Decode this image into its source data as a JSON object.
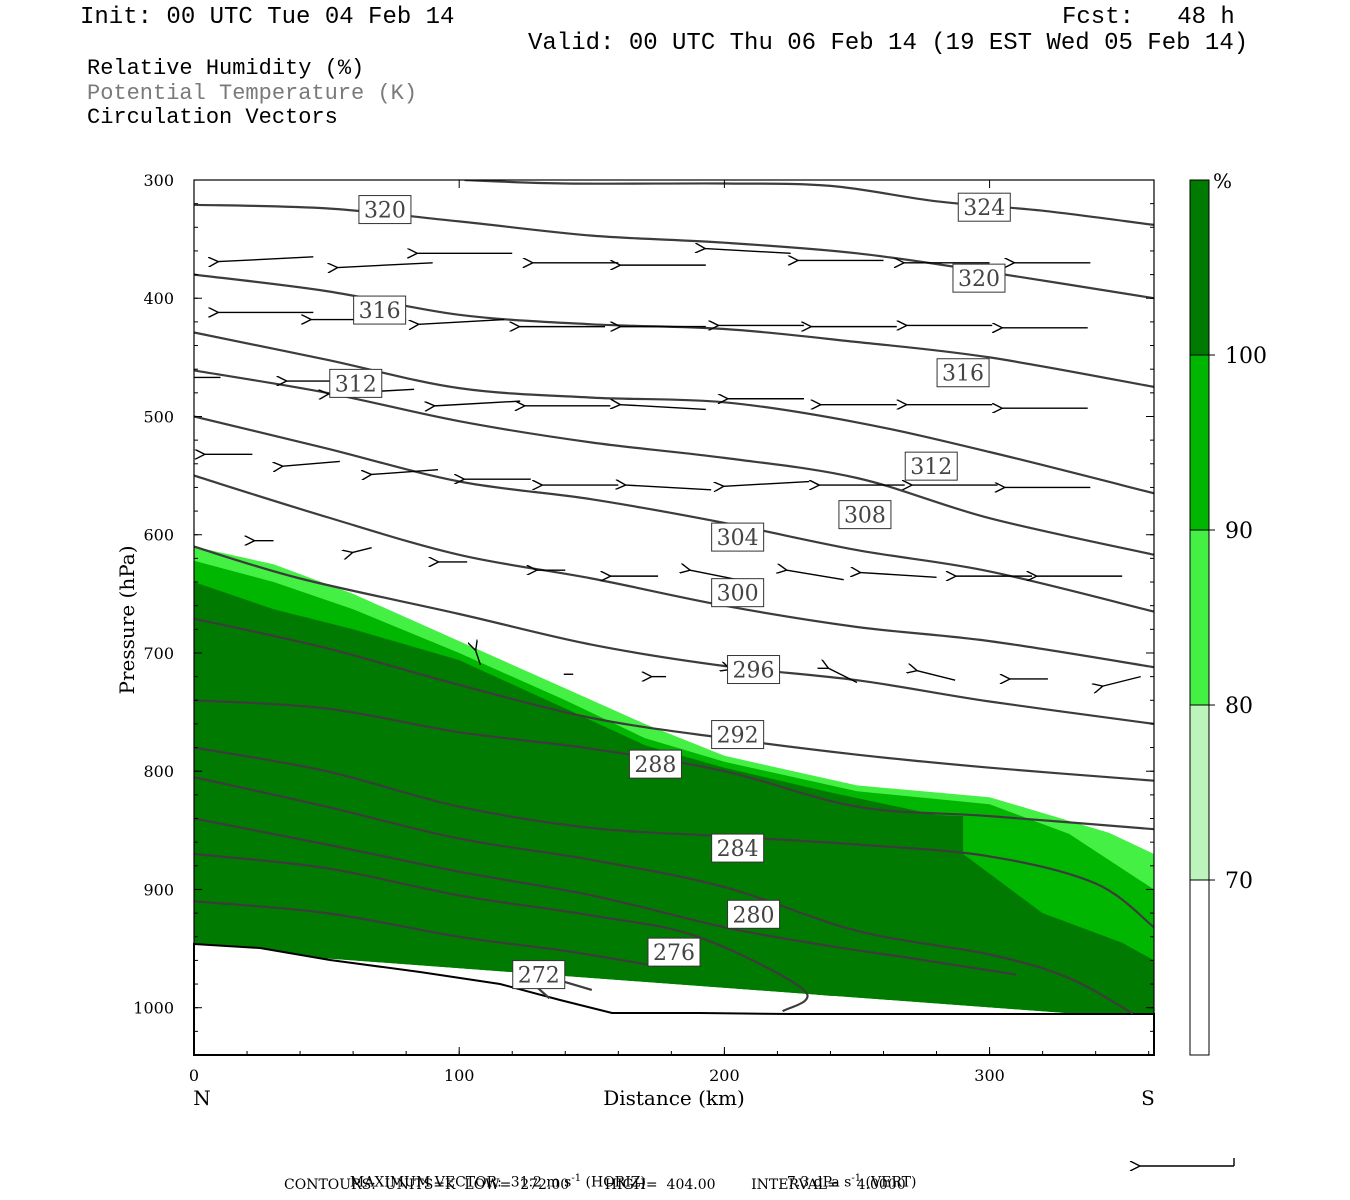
{
  "header": {
    "init": "Init: 00 UTC Tue 04 Feb 14",
    "fcst": "Fcst:   48 h",
    "valid": "Valid: 00 UTC Thu 06 Feb 14 (19 EST Wed 05 Feb 14)"
  },
  "fields": {
    "rh": "Relative Humidity (%)",
    "theta": "Potential Temperature (K)",
    "vectors": "Circulation Vectors"
  },
  "footer": {
    "line1_a": "MAXIMUM VECTOR:  31.2 m s",
    "line1_a_sup": "-1",
    "line1_b": " (HORIZ)",
    "line1_c": "7.3 dPa s",
    "line1_c_sup": "-1",
    "line1_d": " (VERT)",
    "line2": "CONTOURS:  UNITS=K  LOW=  272.00        HIGH=  404.00        INTERVAL=    4.0000"
  },
  "chart_data": {
    "type": "cross-section",
    "xlabel": "Distance (km)",
    "ylabel": "Pressure (hPa)",
    "x_end_labels": [
      "N",
      "S"
    ],
    "xlim": [
      0,
      362
    ],
    "ylim": [
      1040,
      300
    ],
    "x_ticks": [
      0,
      100,
      200,
      300
    ],
    "y_ticks": [
      300,
      400,
      500,
      600,
      700,
      800,
      900,
      1000
    ],
    "colorbar": {
      "unit": "%",
      "levels": [
        70,
        80,
        90,
        100
      ],
      "colors": [
        "#ffffff",
        "#bcf4bc",
        "#44f044",
        "#00b600",
        "#007a00"
      ]
    },
    "theta_contours": [
      {
        "value": 324,
        "label": "324",
        "label_at": [
          298,
          323
        ],
        "points": [
          [
            102,
            300
          ],
          [
            140,
            303
          ],
          [
            200,
            303
          ],
          [
            240,
            305
          ],
          [
            280,
            318
          ],
          [
            320,
            326
          ],
          [
            362,
            338
          ]
        ]
      },
      {
        "value": 320,
        "label": "320",
        "label_at": [
          72,
          325
        ],
        "points": [
          [
            0,
            321
          ],
          [
            50,
            324
          ],
          [
            100,
            335
          ],
          [
            150,
            347
          ],
          [
            200,
            353
          ],
          [
            250,
            362
          ],
          [
            300,
            378
          ],
          [
            362,
            400
          ]
        ]
      },
      {
        "value": 320,
        "label": "320",
        "label_at": [
          296,
          383
        ],
        "points": [
          [
            0,
            380
          ],
          [
            50,
            394
          ],
          [
            100,
            414
          ],
          [
            150,
            422
          ],
          [
            200,
            426
          ],
          [
            250,
            437
          ],
          [
            300,
            450
          ],
          [
            362,
            475
          ]
        ]
      },
      {
        "value": 316,
        "label": "316",
        "label_at": [
          70,
          410
        ],
        "points": [
          [
            0,
            429
          ],
          [
            50,
            452
          ],
          [
            100,
            476
          ],
          [
            150,
            484
          ],
          [
            200,
            488
          ],
          [
            250,
            505
          ],
          [
            300,
            530
          ],
          [
            362,
            565
          ]
        ]
      },
      {
        "value": 316,
        "label": "316",
        "label_at": [
          290,
          463
        ],
        "points": [
          [
            0,
            461
          ],
          [
            50,
            480
          ],
          [
            100,
            504
          ],
          [
            150,
            522
          ],
          [
            200,
            535
          ],
          [
            250,
            552
          ],
          [
            300,
            586
          ],
          [
            362,
            617
          ]
        ]
      },
      {
        "value": 312,
        "label": "312",
        "label_at": [
          61,
          472
        ],
        "points": [
          [
            0,
            500
          ],
          [
            50,
            527
          ],
          [
            100,
            555
          ],
          [
            150,
            570
          ],
          [
            200,
            590
          ],
          [
            250,
            613
          ],
          [
            300,
            631
          ],
          [
            362,
            665
          ]
        ]
      },
      {
        "value": 312,
        "label": "312",
        "label_at": [
          278,
          542
        ],
        "points": [
          [
            0,
            550
          ],
          [
            50,
            585
          ],
          [
            100,
            617
          ],
          [
            150,
            637
          ],
          [
            200,
            660
          ],
          [
            250,
            678
          ],
          [
            300,
            690
          ],
          [
            362,
            712
          ]
        ]
      },
      {
        "value": 308,
        "label": "308",
        "label_at": [
          253,
          583
        ],
        "points": [
          [
            0,
            610
          ],
          [
            40,
            637
          ],
          [
            100,
            667
          ],
          [
            150,
            693
          ],
          [
            200,
            711
          ],
          [
            250,
            723
          ],
          [
            300,
            741
          ],
          [
            362,
            760
          ]
        ]
      },
      {
        "value": 304,
        "label": "304",
        "label_at": [
          205,
          602
        ],
        "points": [
          [
            0,
            671
          ],
          [
            50,
            696
          ],
          [
            100,
            727
          ],
          [
            150,
            755
          ],
          [
            200,
            772
          ],
          [
            250,
            786
          ],
          [
            300,
            797
          ],
          [
            362,
            808
          ]
        ]
      },
      {
        "value": 300,
        "label": "300",
        "label_at": [
          205,
          649
        ],
        "points": [
          [
            0,
            740
          ],
          [
            50,
            747
          ],
          [
            100,
            767
          ],
          [
            150,
            781
          ],
          [
            200,
            800
          ],
          [
            250,
            830
          ],
          [
            300,
            838
          ],
          [
            362,
            849
          ]
        ]
      },
      {
        "value": 296,
        "label": "296",
        "label_at": [
          211,
          714
        ],
        "points": [
          [
            0,
            780
          ],
          [
            50,
            800
          ],
          [
            100,
            830
          ],
          [
            150,
            848
          ],
          [
            200,
            855
          ],
          [
            250,
            862
          ],
          [
            300,
            872
          ],
          [
            340,
            895
          ],
          [
            362,
            932
          ]
        ]
      },
      {
        "value": 292,
        "label": "292",
        "label_at": [
          205,
          769
        ],
        "points": [
          [
            0,
            805
          ],
          [
            50,
            830
          ],
          [
            100,
            857
          ],
          [
            150,
            875
          ],
          [
            200,
            898
          ],
          [
            250,
            935
          ],
          [
            300,
            955
          ],
          [
            330,
            975
          ],
          [
            354,
            1005
          ]
        ]
      },
      {
        "value": 288,
        "label": "288",
        "label_at": [
          174,
          794
        ],
        "points": [
          [
            0,
            840
          ],
          [
            50,
            862
          ],
          [
            100,
            885
          ],
          [
            150,
            905
          ],
          [
            200,
            932
          ],
          [
            240,
            948
          ],
          [
            270,
            958
          ],
          [
            310,
            972
          ]
        ]
      },
      {
        "value": 284,
        "label": "284",
        "label_at": [
          205,
          865
        ],
        "points": [
          [
            0,
            870
          ],
          [
            50,
            882
          ],
          [
            100,
            905
          ],
          [
            150,
            922
          ],
          [
            190,
            940
          ],
          [
            230,
            985
          ],
          [
            222,
            1003
          ]
        ]
      },
      {
        "value": 280,
        "label": "280",
        "label_at": [
          211,
          921
        ],
        "points": [
          [
            0,
            910
          ],
          [
            50,
            920
          ],
          [
            100,
            940
          ],
          [
            140,
            952
          ],
          [
            175,
            965
          ]
        ]
      },
      {
        "value": 276,
        "label": "276",
        "label_at": [
          181,
          953
        ],
        "points": [
          [
            135,
            975
          ],
          [
            150,
            985
          ]
        ]
      },
      {
        "value": 272,
        "label": "272",
        "label_at": [
          130,
          972
        ],
        "points": [
          [
            128,
            980
          ],
          [
            134,
            992
          ]
        ]
      }
    ],
    "rh_regions": [
      {
        "level": 80,
        "points": [
          [
            0,
            610
          ],
          [
            30,
            625
          ],
          [
            60,
            650
          ],
          [
            100,
            690
          ],
          [
            140,
            730
          ],
          [
            170,
            760
          ],
          [
            200,
            787
          ],
          [
            250,
            812
          ],
          [
            300,
            822
          ],
          [
            345,
            852
          ],
          [
            362,
            870
          ],
          [
            362,
            1010
          ],
          [
            0,
            950
          ]
        ]
      },
      {
        "level": 90,
        "points": [
          [
            0,
            622
          ],
          [
            30,
            640
          ],
          [
            60,
            663
          ],
          [
            100,
            700
          ],
          [
            140,
            740
          ],
          [
            170,
            772
          ],
          [
            200,
            792
          ],
          [
            250,
            817
          ],
          [
            300,
            828
          ],
          [
            330,
            853
          ],
          [
            362,
            900
          ],
          [
            362,
            1010
          ],
          [
            0,
            950
          ]
        ]
      },
      {
        "level": 100,
        "points": [
          [
            0,
            640
          ],
          [
            30,
            663
          ],
          [
            60,
            680
          ],
          [
            100,
            706
          ],
          [
            140,
            747
          ],
          [
            170,
            778
          ],
          [
            200,
            797
          ],
          [
            240,
            818
          ],
          [
            280,
            837
          ],
          [
            290,
            838
          ],
          [
            290,
            870
          ],
          [
            320,
            920
          ],
          [
            350,
            945
          ],
          [
            362,
            960
          ],
          [
            362,
            1010
          ],
          [
            0,
            950
          ]
        ]
      },
      {
        "level": 110,
        "points": [
          [
            88,
            800
          ],
          [
            100,
            790
          ],
          [
            140,
            800
          ],
          [
            180,
            818
          ],
          [
            210,
            845
          ],
          [
            235,
            860
          ],
          [
            255,
            915
          ],
          [
            285,
            950
          ],
          [
            297,
            970
          ],
          [
            295,
            985
          ],
          [
            240,
            990
          ],
          [
            215,
            985
          ],
          [
            180,
            950
          ],
          [
            150,
            908
          ],
          [
            100,
            840
          ]
        ]
      }
    ],
    "vectors": [
      {
        "x": 0,
        "p": 350,
        "u": -1,
        "w": 0
      },
      {
        "x": 45,
        "p": 365,
        "u": -1,
        "w": 0.05
      },
      {
        "x": 90,
        "p": 370,
        "u": -1,
        "w": 0.05
      },
      {
        "x": 120,
        "p": 362,
        "u": -1,
        "w": 0
      },
      {
        "x": 160,
        "p": 370,
        "u": -0.9,
        "w": 0
      },
      {
        "x": 193,
        "p": 372,
        "u": -0.9,
        "w": 0
      },
      {
        "x": 225,
        "p": 362,
        "u": -0.9,
        "w": -0.05
      },
      {
        "x": 260,
        "p": 368,
        "u": -0.9,
        "w": 0
      },
      {
        "x": 300,
        "p": 370,
        "u": -0.9,
        "w": 0
      },
      {
        "x": 338,
        "p": 370,
        "u": -0.8,
        "w": 0
      },
      {
        "x": 0,
        "p": 403,
        "u": -1,
        "w": 0
      },
      {
        "x": 45,
        "p": 412,
        "u": -1,
        "w": 0
      },
      {
        "x": 80,
        "p": 418,
        "u": -1,
        "w": 0
      },
      {
        "x": 117,
        "p": 418,
        "u": -0.9,
        "w": 0.05
      },
      {
        "x": 155,
        "p": 424,
        "u": -0.9,
        "w": 0
      },
      {
        "x": 193,
        "p": 424,
        "u": -0.9,
        "w": 0
      },
      {
        "x": 230,
        "p": 423,
        "u": -0.9,
        "w": 0
      },
      {
        "x": 265,
        "p": 424,
        "u": -0.9,
        "w": 0
      },
      {
        "x": 301,
        "p": 423,
        "u": -0.9,
        "w": 0
      },
      {
        "x": 337,
        "p": 425,
        "u": -0.9,
        "w": 0
      },
      {
        "x": 10,
        "p": 467,
        "u": -0.8,
        "w": 0
      },
      {
        "x": 60,
        "p": 470,
        "u": -0.7,
        "w": 0
      },
      {
        "x": 83,
        "p": 477,
        "u": -0.9,
        "w": 0.05
      },
      {
        "x": 123,
        "p": 487,
        "u": -0.9,
        "w": 0.05
      },
      {
        "x": 157,
        "p": 491,
        "u": -0.9,
        "w": 0
      },
      {
        "x": 193,
        "p": 494,
        "u": -0.9,
        "w": -0.05
      },
      {
        "x": 230,
        "p": 485,
        "u": -0.8,
        "w": 0
      },
      {
        "x": 265,
        "p": 490,
        "u": -0.8,
        "w": 0
      },
      {
        "x": 301,
        "p": 490,
        "u": -0.9,
        "w": 0
      },
      {
        "x": 337,
        "p": 493,
        "u": -0.9,
        "w": 0
      },
      {
        "x": 22,
        "p": 532,
        "u": -0.5,
        "w": 0
      },
      {
        "x": 55,
        "p": 538,
        "u": -0.6,
        "w": 0.05
      },
      {
        "x": 92,
        "p": 545,
        "u": -0.7,
        "w": 0.05
      },
      {
        "x": 127,
        "p": 553,
        "u": -0.7,
        "w": 0
      },
      {
        "x": 160,
        "p": 558,
        "u": -0.8,
        "w": 0
      },
      {
        "x": 195,
        "p": 562,
        "u": -0.9,
        "w": -0.05
      },
      {
        "x": 232,
        "p": 555,
        "u": -0.9,
        "w": 0.05
      },
      {
        "x": 268,
        "p": 558,
        "u": -0.9,
        "w": 0
      },
      {
        "x": 303,
        "p": 558,
        "u": -0.9,
        "w": 0
      },
      {
        "x": 338,
        "p": 560,
        "u": -0.9,
        "w": 0
      },
      {
        "x": 30,
        "p": 605,
        "u": -0.2,
        "w": 0
      },
      {
        "x": 67,
        "p": 611,
        "u": -0.2,
        "w": 0.05
      },
      {
        "x": 103,
        "p": 623,
        "u": -0.3,
        "w": 0
      },
      {
        "x": 140,
        "p": 630,
        "u": -0.3,
        "w": 0
      },
      {
        "x": 175,
        "p": 635,
        "u": -0.5,
        "w": 0
      },
      {
        "x": 205,
        "p": 638,
        "u": -0.5,
        "w": -0.1
      },
      {
        "x": 245,
        "p": 638,
        "u": -0.6,
        "w": -0.1
      },
      {
        "x": 280,
        "p": 636,
        "u": -0.8,
        "w": -0.05
      },
      {
        "x": 316,
        "p": 635,
        "u": -0.8,
        "w": 0
      },
      {
        "x": 350,
        "p": 635,
        "u": -0.9,
        "w": 0
      },
      {
        "x": 108,
        "p": 710,
        "u": -0.05,
        "w": -0.15
      },
      {
        "x": 143,
        "p": 718,
        "u": -0.1,
        "w": 0
      },
      {
        "x": 178,
        "p": 720,
        "u": -0.15,
        "w": 0
      },
      {
        "x": 213,
        "p": 722,
        "u": -0.3,
        "w": -0.1
      },
      {
        "x": 250,
        "p": 725,
        "u": -0.3,
        "w": -0.15
      },
      {
        "x": 287,
        "p": 723,
        "u": -0.4,
        "w": -0.1
      },
      {
        "x": 322,
        "p": 722,
        "u": -0.4,
        "w": 0
      },
      {
        "x": 357,
        "p": 720,
        "u": -0.4,
        "w": 0.1
      }
    ]
  }
}
